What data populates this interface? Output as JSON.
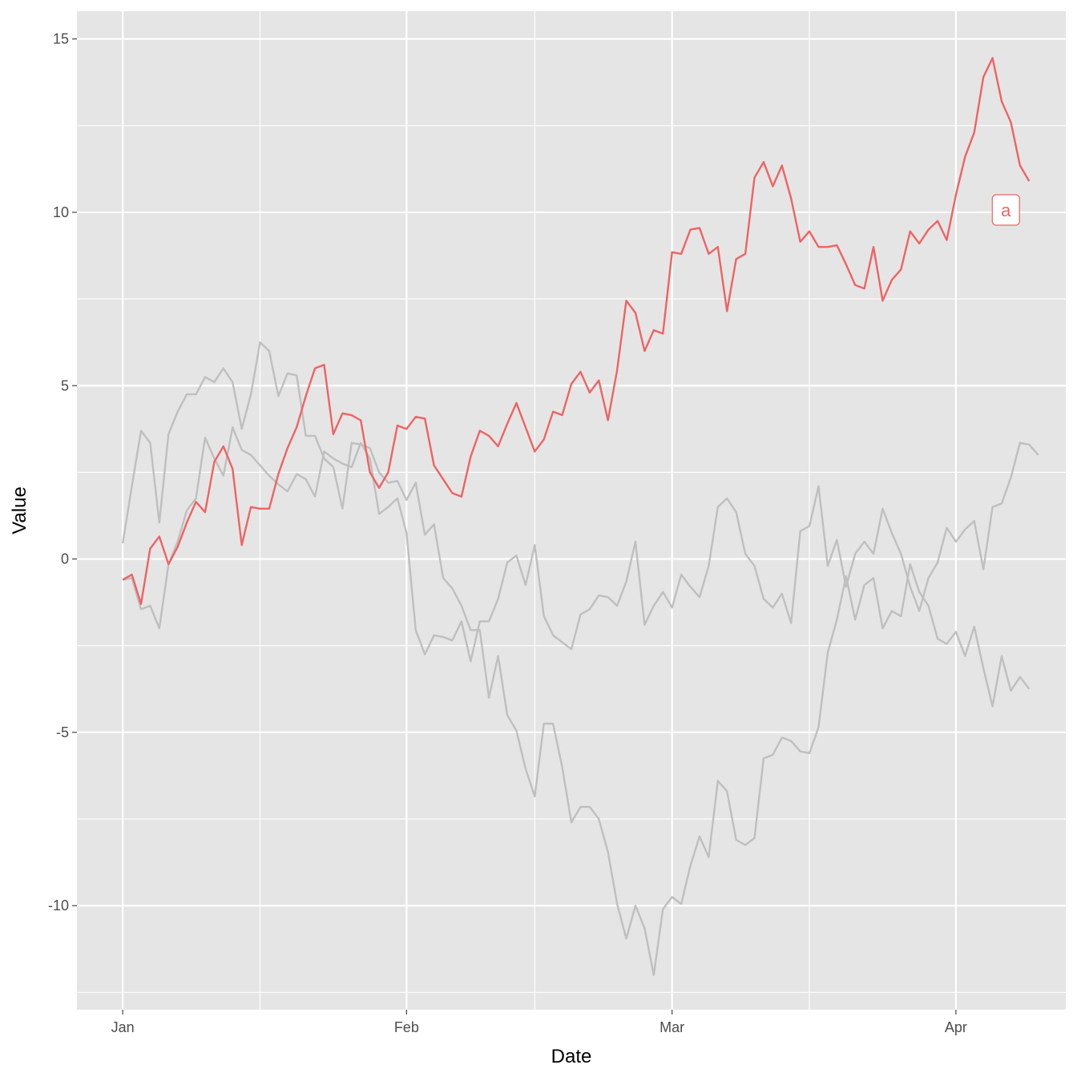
{
  "chart_data": {
    "type": "line",
    "title": "",
    "xlabel": "Date",
    "ylabel": "Value",
    "x_start": "2020-01-01",
    "x_end": "2020-04-09",
    "xlim": [
      "2019-12-27",
      "2020-04-13"
    ],
    "ylim": [
      -13,
      15.8
    ],
    "x_ticks": [
      {
        "label": "Jan",
        "date": "2020-01-01"
      },
      {
        "label": "Feb",
        "date": "2020-02-01"
      },
      {
        "label": "Mar",
        "date": "2020-03-01"
      },
      {
        "label": "Apr",
        "date": "2020-04-01"
      }
    ],
    "x_minor_dates": [
      "2020-01-16",
      "2020-02-15",
      "2020-03-16"
    ],
    "y_ticks": [
      15,
      10,
      5,
      0,
      -5,
      -10
    ],
    "y_tick_labels": [
      "15",
      "10",
      "5",
      "0",
      "-5",
      "-10"
    ],
    "y_minor": [
      12.5,
      7.5,
      2.5,
      -2.5,
      -7.5,
      -12.5
    ],
    "grid": true,
    "legend": "none",
    "colors": {
      "panel": "#e5e5e5",
      "grid": "#ffffff",
      "highlight": "#ef6363",
      "other": "#bfbfbf"
    },
    "series": [
      {
        "highlight": true,
        "label": "a",
        "values": [
          -0.6,
          -0.45,
          -1.3,
          0.3,
          0.65,
          -0.15,
          0.35,
          1.05,
          1.65,
          1.35,
          2.8,
          3.25,
          2.6,
          0.4,
          1.5,
          1.45,
          1.45,
          2.45,
          3.2,
          3.8,
          4.7,
          5.5,
          5.6,
          3.6,
          4.2,
          4.15,
          4.0,
          2.5,
          2.05,
          2.5,
          3.85,
          3.75,
          4.1,
          4.05,
          2.7,
          2.3,
          1.9,
          1.8,
          2.95,
          3.7,
          3.55,
          3.25,
          3.9,
          4.5,
          3.8,
          3.1,
          3.45,
          4.25,
          4.15,
          5.05,
          5.4,
          4.8,
          5.15,
          4.0,
          5.45,
          7.45,
          7.1,
          6.0,
          6.6,
          6.5,
          8.85,
          8.8,
          9.5,
          9.55,
          8.8,
          9.0,
          7.15,
          8.65,
          8.8,
          11.0,
          11.45,
          10.75,
          11.35,
          10.4,
          9.15,
          9.45,
          9.0,
          9.0,
          9.05,
          8.5,
          7.9,
          7.8,
          9.0,
          7.45,
          8.05,
          8.35,
          9.45,
          9.1,
          9.5,
          9.75,
          9.2,
          10.5,
          11.6,
          12.3,
          13.9,
          14.45,
          13.2,
          12.6,
          11.35,
          10.9
        ]
      },
      {
        "highlight": false,
        "values": [
          0.45,
          2.1,
          3.7,
          3.35,
          1.05,
          3.6,
          4.25,
          4.75,
          4.75,
          5.25,
          5.1,
          5.5,
          5.1,
          3.75,
          4.75,
          6.25,
          6.0,
          4.7,
          5.35,
          5.3,
          3.55,
          3.55,
          2.9,
          2.65,
          1.45,
          3.35,
          3.3,
          3.2,
          2.5,
          2.2,
          2.25,
          1.7,
          2.2,
          0.7,
          1.0,
          -0.55,
          -0.85,
          -1.35,
          -2.05,
          -2.05,
          -4.0,
          -2.8,
          -4.5,
          -4.95,
          -6.05,
          -6.85,
          -4.75,
          -4.75,
          -6.0,
          -7.6,
          -7.15,
          -7.15,
          -7.5,
          -8.45,
          -9.95,
          -10.95,
          -10.0,
          -10.65,
          -12.0,
          -10.1,
          -9.75,
          -9.95,
          -8.85,
          -8.0,
          -8.6,
          -6.4,
          -6.7,
          -8.1,
          -8.25,
          -8.05,
          -5.75,
          -5.65,
          -5.15,
          -5.25,
          -5.55,
          -5.6,
          -4.85,
          -2.7,
          -1.75,
          -0.5,
          -1.75,
          -0.75,
          -0.55,
          -2.0,
          -1.5,
          -1.65,
          -0.15,
          -0.95,
          -1.35,
          -2.3,
          -2.45,
          -2.1,
          -2.8,
          -1.95,
          -3.15,
          -4.25,
          -2.8,
          -3.8,
          -3.4,
          -3.75
        ]
      },
      {
        "highlight": false,
        "values": [
          -0.6,
          -0.55,
          -1.45,
          -1.35,
          -2.0,
          -0.15,
          0.5,
          1.4,
          1.75,
          3.5,
          2.9,
          2.4,
          3.8,
          3.15,
          3.0,
          2.7,
          2.4,
          2.15,
          1.95,
          2.45,
          2.3,
          1.8,
          3.1,
          2.9,
          2.75,
          2.65,
          3.35,
          2.9,
          1.3,
          1.5,
          1.75,
          0.75,
          -2.05,
          -2.75,
          -2.2,
          -2.25,
          -2.35,
          -1.8,
          -2.95,
          -1.8,
          -1.8,
          -1.15,
          -0.1,
          0.1,
          -0.75,
          0.4,
          -1.65,
          -2.2,
          -2.4,
          -2.6,
          -1.6,
          -1.45,
          -1.05,
          -1.1,
          -1.35,
          -0.65,
          0.5,
          -1.9,
          -1.35,
          -0.95,
          -1.4,
          -0.45,
          -0.8,
          -1.1,
          -0.2,
          1.5,
          1.75,
          1.35,
          0.15,
          -0.2,
          -1.15,
          -1.4,
          -1.0,
          -1.85,
          0.8,
          0.95,
          2.1,
          -0.2,
          0.55,
          -0.8,
          0.15,
          0.5,
          0.15,
          1.45,
          0.75,
          0.15,
          -0.8,
          -1.5,
          -0.55,
          -0.1,
          0.9,
          0.5,
          0.85,
          1.1,
          -0.3,
          1.5,
          1.6,
          2.35,
          3.35,
          3.3,
          3.0
        ]
      }
    ]
  }
}
